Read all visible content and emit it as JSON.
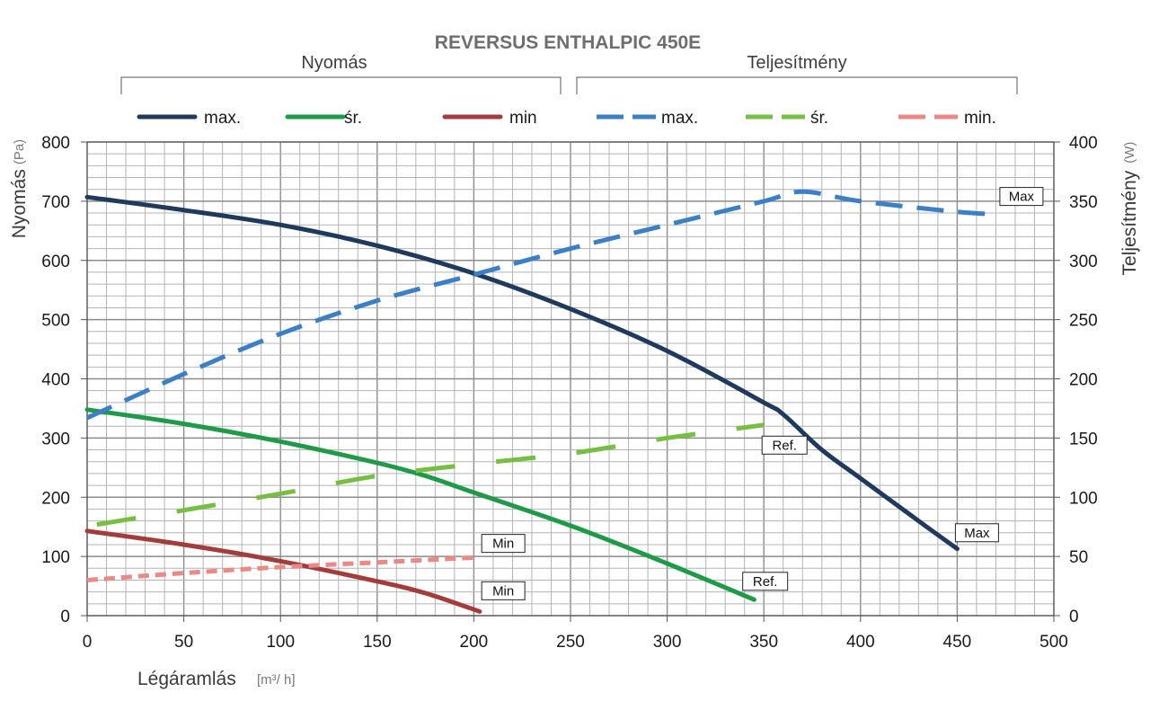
{
  "chart_data": {
    "type": "line",
    "title": "REVERSUS ENTHALPIC 450E",
    "groups": [
      "Nyomás",
      "Teljesítmény"
    ],
    "xlabel": "Légáramlás",
    "xunit": "[m³/ h]",
    "ylabel_left": "Nyomás",
    "yunit_left": "(Pa)",
    "ylabel_right": "Teljesítmény",
    "yunit_right": "(W)",
    "xlim": [
      0,
      500
    ],
    "ylim_left": [
      0,
      800
    ],
    "ylim_right": [
      0,
      400
    ],
    "x_ticks": [
      "0",
      "50",
      "100",
      "150",
      "200",
      "250",
      "300",
      "350",
      "400",
      "450",
      "500"
    ],
    "y_left_ticks": [
      "0",
      "100",
      "200",
      "300",
      "400",
      "500",
      "600",
      "700",
      "800"
    ],
    "y_right_ticks": [
      "0",
      "50",
      "100",
      "150",
      "200",
      "250",
      "300",
      "350",
      "400"
    ],
    "grid": true,
    "legend_position": "top",
    "series": [
      {
        "name": "max.",
        "axis": "left",
        "style": "solid",
        "color": "#1f3a5c",
        "x": [
          0,
          50,
          100,
          150,
          200,
          250,
          300,
          350,
          360,
          380,
          400,
          430,
          450
        ],
        "y": [
          707,
          685,
          660,
          625,
          578,
          518,
          447,
          360,
          340,
          280,
          232,
          160,
          113
        ]
      },
      {
        "name": "śr.",
        "axis": "left",
        "style": "solid",
        "color": "#1e9a48",
        "x": [
          0,
          50,
          100,
          150,
          175,
          200,
          250,
          300,
          345
        ],
        "y": [
          348,
          324,
          294,
          258,
          236,
          208,
          152,
          88,
          27
        ]
      },
      {
        "name": "min",
        "axis": "left",
        "style": "solid",
        "color": "#a23d3b",
        "x": [
          0,
          50,
          100,
          150,
          175,
          203
        ],
        "y": [
          143,
          120,
          92,
          58,
          38,
          7
        ]
      },
      {
        "name": "max.",
        "axis": "right",
        "style": "dashed",
        "color": "#3d7fc4",
        "x": [
          0,
          50,
          100,
          150,
          200,
          250,
          300,
          350,
          370,
          400,
          450,
          470
        ],
        "y": [
          167,
          204,
          238,
          266,
          288,
          310,
          330,
          350,
          358,
          350,
          341,
          339
        ]
      },
      {
        "name": "śr.",
        "axis": "right",
        "style": "dashed",
        "color": "#78be44",
        "x": [
          5,
          50,
          100,
          150,
          200,
          250,
          300,
          350
        ],
        "y": [
          77,
          89,
          103,
          118,
          128,
          137,
          150,
          161
        ]
      },
      {
        "name": "min.",
        "axis": "right",
        "style": "dashed",
        "color": "#ea8a86",
        "x": [
          0,
          50,
          100,
          150,
          200
        ],
        "y": [
          30,
          36,
          41,
          45,
          49
        ]
      }
    ],
    "annotations": [
      {
        "text": "Max",
        "x": 473,
        "y_right": 354
      },
      {
        "text": "Ref.",
        "x": 350,
        "y_right": 144
      },
      {
        "text": "Min",
        "x": 205,
        "y_right": 61
      },
      {
        "text": "Max",
        "x": 450,
        "y_left": 140
      },
      {
        "text": "Ref.",
        "x": 340,
        "y_left": 58
      },
      {
        "text": "Min",
        "x": 205,
        "y_left": 42
      }
    ]
  }
}
